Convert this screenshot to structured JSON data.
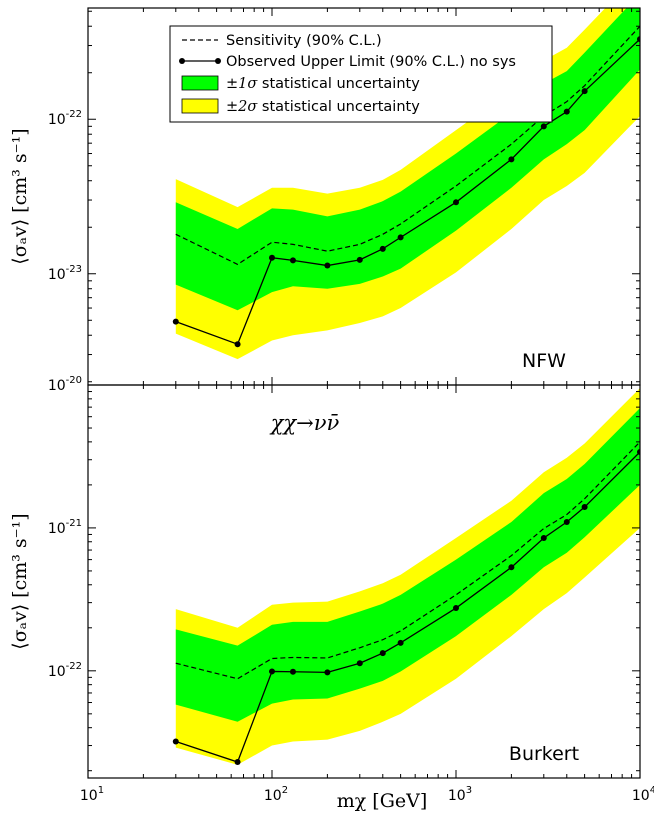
{
  "chart_data": [
    {
      "type": "line",
      "panel_label": "NFW",
      "ylabel": "⟨σₐv⟩ [cm³ s⁻¹]",
      "xscale": "log",
      "yscale": "log",
      "xlim": [
        10,
        10000
      ],
      "ylim_exp": [
        -23.72,
        -21.28
      ],
      "ylim": [
        1.9e-24,
        5.2e-22
      ],
      "x_ticks": [
        {
          "exp": 1,
          "label": "10",
          "sup": "1"
        },
        {
          "exp": 2,
          "label": "10",
          "sup": "2"
        },
        {
          "exp": 3,
          "label": "10",
          "sup": "3"
        },
        {
          "exp": 4,
          "label": "10",
          "sup": "4"
        }
      ],
      "y_ticks": [
        {
          "exp": -23,
          "label": "10",
          "sup": "-23"
        },
        {
          "exp": -22,
          "label": "10",
          "sup": "-22"
        },
        {
          "exp": -21,
          "label": "10",
          "sup": "-21"
        }
      ],
      "x": [
        30,
        65,
        100,
        130,
        200,
        300,
        400,
        500,
        1000,
        2000,
        3000,
        4000,
        5000,
        10000
      ],
      "series": [
        {
          "name": "Sensitivity (90% C.L.)",
          "style": "dashed",
          "values": [
            1.8e-23,
            1.15e-23,
            1.6e-23,
            1.55e-23,
            1.4e-23,
            1.55e-23,
            1.8e-23,
            2.1e-23,
            3.7e-23,
            6.9e-23,
            1.05e-22,
            1.3e-22,
            1.65e-22,
            4e-22
          ]
        },
        {
          "name": "Observed Upper Limit (90% C.L.) no sys",
          "style": "solid-markers",
          "values": [
            4.9e-24,
            3.5e-24,
            1.27e-23,
            1.22e-23,
            1.13e-23,
            1.23e-23,
            1.45e-23,
            1.72e-23,
            2.9e-23,
            5.5e-23,
            9e-23,
            1.12e-22,
            1.52e-22,
            3.3e-22
          ]
        }
      ],
      "band_1sigma_low": [
        8.5e-24,
        5.8e-24,
        7.6e-24,
        8.3e-24,
        8e-24,
        8.6e-24,
        9.6e-24,
        1.08e-23,
        1.9e-23,
        3.6e-23,
        5.5e-23,
        6.9e-23,
        8.5e-23,
        2.1e-22
      ],
      "band_1sigma_high": [
        2.9e-23,
        1.95e-23,
        2.65e-23,
        2.6e-23,
        2.35e-23,
        2.6e-23,
        2.95e-23,
        3.4e-23,
        6e-23,
        1.1e-22,
        1.7e-22,
        2.05e-22,
        2.7e-22,
        6.5e-22
      ],
      "band_2sigma_low": [
        4.1e-24,
        2.8e-24,
        3.7e-24,
        4e-24,
        4.3e-24,
        4.8e-24,
        5.3e-24,
        6e-24,
        1.02e-23,
        1.95e-23,
        3e-23,
        3.7e-23,
        4.5e-23,
        1.05e-22
      ],
      "band_2sigma_high": [
        4.1e-23,
        2.7e-23,
        3.6e-23,
        3.6e-23,
        3.3e-23,
        3.6e-23,
        4.05e-23,
        4.7e-23,
        8.5e-23,
        1.55e-22,
        2.4e-22,
        2.9e-22,
        3.8e-22,
        9e-22
      ]
    },
    {
      "type": "line",
      "panel_label": "Burkert",
      "annotation": "χχ→νν̄",
      "ylabel": "⟨σₐv⟩ [cm³ s⁻¹]",
      "xlabel": "mχ [GeV]",
      "xscale": "log",
      "yscale": "log",
      "xlim": [
        10,
        10000
      ],
      "ylim_exp": [
        -22.75,
        -20.0
      ],
      "ylim": [
        1.8e-23,
        1e-20
      ],
      "x_ticks": [
        {
          "exp": 1,
          "label": "10",
          "sup": "1"
        },
        {
          "exp": 2,
          "label": "10",
          "sup": "2"
        },
        {
          "exp": 3,
          "label": "10",
          "sup": "3"
        },
        {
          "exp": 4,
          "label": "10",
          "sup": "4"
        }
      ],
      "y_ticks": [
        {
          "exp": -22,
          "label": "10",
          "sup": "-22"
        },
        {
          "exp": -21,
          "label": "10",
          "sup": "-21"
        },
        {
          "exp": -20,
          "label": "10",
          "sup": "-20"
        }
      ],
      "x": [
        30,
        65,
        100,
        130,
        200,
        300,
        400,
        500,
        1000,
        2000,
        3000,
        4000,
        5000,
        10000
      ],
      "series": [
        {
          "name": "Sensitivity (90% C.L.)",
          "style": "dashed",
          "values": [
            1.13e-22,
            8.8e-23,
            1.22e-22,
            1.24e-22,
            1.23e-22,
            1.45e-22,
            1.65e-22,
            1.9e-22,
            3.4e-22,
            6.4e-22,
            9.9e-22,
            1.24e-21,
            1.6e-21,
            4e-21
          ]
        },
        {
          "name": "Observed Upper Limit (90% C.L.) no sys",
          "style": "solid-markers",
          "values": [
            3.2e-23,
            2.3e-23,
            9.9e-23,
            9.85e-23,
            9.75e-23,
            1.13e-22,
            1.33e-22,
            1.57e-22,
            2.75e-22,
            5.3e-22,
            8.5e-22,
            1.1e-21,
            1.4e-21,
            3.4e-21
          ]
        }
      ],
      "band_1sigma_low": [
        5.8e-23,
        4.4e-23,
        5.9e-23,
        6.3e-23,
        6.4e-23,
        7.5e-23,
        8.5e-23,
        9.9e-23,
        1.75e-22,
        3.4e-22,
        5.3e-22,
        6.7e-22,
        8.6e-22,
        2e-21
      ],
      "band_1sigma_high": [
        1.95e-22,
        1.5e-22,
        2.1e-22,
        2.2e-22,
        2.2e-22,
        2.6e-22,
        2.95e-22,
        3.4e-22,
        6e-22,
        1.1e-21,
        1.75e-21,
        2.2e-21,
        2.8e-21,
        6.9e-21
      ],
      "band_2sigma_low": [
        2.9e-23,
        2.2e-23,
        3e-23,
        3.2e-23,
        3.3e-23,
        3.8e-23,
        4.4e-23,
        5e-23,
        8.8e-23,
        1.75e-22,
        2.7e-22,
        3.5e-22,
        4.5e-22,
        1e-21
      ],
      "band_2sigma_high": [
        2.7e-22,
        2e-22,
        2.9e-22,
        3e-22,
        3.05e-22,
        3.6e-22,
        4.1e-22,
        4.7e-22,
        8.5e-22,
        1.55e-21,
        2.45e-21,
        3.1e-21,
        3.9e-21,
        9.5e-21
      ]
    }
  ],
  "legend": {
    "placement": "top-center",
    "entries": [
      {
        "key": "sensitivity",
        "label": "Sensitivity (90% C.L.)"
      },
      {
        "key": "observed",
        "label": "Observed Upper Limit (90% C.L.) no sys"
      },
      {
        "key": "band1",
        "label_math": "±1σ",
        "label_text": " statistical uncertainty"
      },
      {
        "key": "band2",
        "label_math": "±2σ",
        "label_text": " statistical uncertainty"
      }
    ]
  },
  "colors": {
    "band_1sigma": "#00ff00",
    "band_2sigma": "#ffff00",
    "line": "#000000",
    "frame": "#000000"
  }
}
